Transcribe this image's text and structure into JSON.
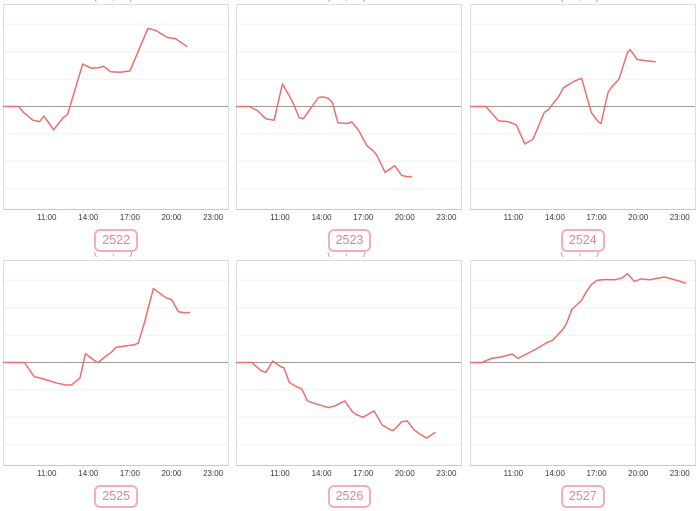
{
  "colors": {
    "line": "#ef6e6c",
    "zero_line": "#9c9c9c",
    "grid": "#f0f0f0",
    "plot_border": "#dddddd",
    "axis_line": "#c7c8d2",
    "tick_text": "#383838",
    "badge_text": "#ee7e97",
    "badge_border": "#f6acbc",
    "background": "#ffffff"
  },
  "axis": {
    "tick_hours": [
      11,
      14,
      17,
      20,
      23
    ],
    "tick_labels": [
      "11:00",
      "14:00",
      "17:00",
      "20:00",
      "23:00"
    ],
    "xlim_hours": [
      7.85,
      24.15
    ],
    "ylim_units": [
      -3.76,
      3.73
    ],
    "grid_unit_values": [
      3,
      2,
      1,
      -1,
      -2,
      -3
    ]
  },
  "chart_data": [
    {
      "type": "line",
      "badge": "2522",
      "clipped_title": "( , )",
      "x_ticks": [
        "11:00",
        "14:00",
        "17:00",
        "20:00",
        "23:00"
      ],
      "series": [
        [
          7.9,
          0
        ],
        [
          9.0,
          0
        ],
        [
          9.3,
          -0.2
        ],
        [
          10.0,
          -0.5
        ],
        [
          10.5,
          -0.55
        ],
        [
          10.8,
          -0.35
        ],
        [
          11.5,
          -0.85
        ],
        [
          12.2,
          -0.4
        ],
        [
          12.5,
          -0.3
        ],
        [
          13.6,
          1.55
        ],
        [
          14.2,
          1.4
        ],
        [
          14.8,
          1.42
        ],
        [
          15.1,
          1.47
        ],
        [
          15.6,
          1.27
        ],
        [
          16.3,
          1.25
        ],
        [
          17.0,
          1.3
        ],
        [
          18.3,
          2.85
        ],
        [
          18.9,
          2.77
        ],
        [
          19.7,
          2.52
        ],
        [
          20.3,
          2.47
        ],
        [
          21.1,
          2.2
        ]
      ]
    },
    {
      "type": "line",
      "badge": "2523",
      "clipped_title": "( , )",
      "x_ticks": [
        "11:00",
        "14:00",
        "17:00",
        "20:00",
        "23:00"
      ],
      "series": [
        [
          7.9,
          0
        ],
        [
          8.8,
          0
        ],
        [
          9.4,
          -0.15
        ],
        [
          10.0,
          -0.45
        ],
        [
          10.6,
          -0.5
        ],
        [
          11.2,
          0.82
        ],
        [
          11.9,
          0.2
        ],
        [
          12.4,
          -0.4
        ],
        [
          12.7,
          -0.45
        ],
        [
          13.2,
          -0.1
        ],
        [
          13.8,
          0.33
        ],
        [
          14.1,
          0.35
        ],
        [
          14.5,
          0.3
        ],
        [
          14.8,
          0.15
        ],
        [
          15.2,
          -0.6
        ],
        [
          15.9,
          -0.62
        ],
        [
          16.2,
          -0.56
        ],
        [
          16.7,
          -0.88
        ],
        [
          17.3,
          -1.43
        ],
        [
          17.7,
          -1.6
        ],
        [
          18.0,
          -1.77
        ],
        [
          18.6,
          -2.4
        ],
        [
          19.3,
          -2.16
        ],
        [
          19.8,
          -2.52
        ],
        [
          20.2,
          -2.56
        ],
        [
          20.5,
          -2.56
        ]
      ]
    },
    {
      "type": "line",
      "badge": "2524",
      "clipped_title": "( , )",
      "x_ticks": [
        "11:00",
        "14:00",
        "17:00",
        "20:00",
        "23:00"
      ],
      "series": [
        [
          7.9,
          0
        ],
        [
          9.0,
          0
        ],
        [
          9.9,
          -0.52
        ],
        [
          10.6,
          -0.55
        ],
        [
          11.2,
          -0.68
        ],
        [
          11.8,
          -1.37
        ],
        [
          12.4,
          -1.19
        ],
        [
          13.2,
          -0.22
        ],
        [
          13.5,
          -0.12
        ],
        [
          13.9,
          0.15
        ],
        [
          14.2,
          0.33
        ],
        [
          14.6,
          0.69
        ],
        [
          15.0,
          0.81
        ],
        [
          15.4,
          0.93
        ],
        [
          15.9,
          1.03
        ],
        [
          16.6,
          -0.22
        ],
        [
          17.1,
          -0.56
        ],
        [
          17.3,
          -0.62
        ],
        [
          17.8,
          0.51
        ],
        [
          18.1,
          0.73
        ],
        [
          18.6,
          1.0
        ],
        [
          19.2,
          1.96
        ],
        [
          19.4,
          2.08
        ],
        [
          19.9,
          1.72
        ],
        [
          20.4,
          1.68
        ],
        [
          21.2,
          1.63
        ]
      ]
    },
    {
      "type": "line",
      "badge": "2525",
      "clipped_title": "( , )",
      "x_ticks": [
        "11:00",
        "14:00",
        "17:00",
        "20:00",
        "23:00"
      ],
      "series": [
        [
          7.9,
          0
        ],
        [
          9.4,
          0
        ],
        [
          10.1,
          -0.52
        ],
        [
          10.4,
          -0.55
        ],
        [
          11.0,
          -0.64
        ],
        [
          11.8,
          -0.76
        ],
        [
          12.4,
          -0.82
        ],
        [
          12.8,
          -0.82
        ],
        [
          13.4,
          -0.56
        ],
        [
          13.8,
          0.32
        ],
        [
          14.5,
          0.05
        ],
        [
          14.7,
          0.0
        ],
        [
          15.2,
          0.2
        ],
        [
          15.7,
          0.39
        ],
        [
          16.0,
          0.55
        ],
        [
          16.6,
          0.6
        ],
        [
          17.3,
          0.65
        ],
        [
          17.6,
          0.7
        ],
        [
          18.0,
          1.36
        ],
        [
          18.7,
          2.7
        ],
        [
          19.6,
          2.36
        ],
        [
          20.0,
          2.3
        ],
        [
          20.5,
          1.85
        ],
        [
          20.9,
          1.82
        ],
        [
          21.3,
          1.82
        ]
      ]
    },
    {
      "type": "line",
      "badge": "2526",
      "clipped_title": "( , )",
      "x_ticks": [
        "11:00",
        "14:00",
        "17:00",
        "20:00",
        "23:00"
      ],
      "series": [
        [
          7.9,
          0
        ],
        [
          9.0,
          0
        ],
        [
          9.6,
          -0.28
        ],
        [
          10.0,
          -0.36
        ],
        [
          10.5,
          0.05
        ],
        [
          11.1,
          -0.16
        ],
        [
          11.3,
          -0.19
        ],
        [
          11.7,
          -0.73
        ],
        [
          12.2,
          -0.88
        ],
        [
          12.6,
          -0.97
        ],
        [
          13.0,
          -1.4
        ],
        [
          13.5,
          -1.49
        ],
        [
          14.1,
          -1.58
        ],
        [
          14.5,
          -1.65
        ],
        [
          15.0,
          -1.58
        ],
        [
          15.7,
          -1.4
        ],
        [
          16.2,
          -1.77
        ],
        [
          16.5,
          -1.89
        ],
        [
          17.0,
          -2.0
        ],
        [
          17.8,
          -1.77
        ],
        [
          18.4,
          -2.28
        ],
        [
          19.0,
          -2.46
        ],
        [
          19.2,
          -2.48
        ],
        [
          19.8,
          -2.16
        ],
        [
          20.2,
          -2.13
        ],
        [
          20.7,
          -2.46
        ],
        [
          21.2,
          -2.64
        ],
        [
          21.6,
          -2.76
        ],
        [
          22.2,
          -2.56
        ]
      ]
    },
    {
      "type": "line",
      "badge": "2527",
      "clipped_title": "( , )",
      "x_ticks": [
        "11:00",
        "14:00",
        "17:00",
        "20:00",
        "23:00"
      ],
      "series": [
        [
          7.9,
          0
        ],
        [
          8.7,
          0
        ],
        [
          9.4,
          0.15
        ],
        [
          10.1,
          0.2
        ],
        [
          10.9,
          0.31
        ],
        [
          11.3,
          0.15
        ],
        [
          12.0,
          0.33
        ],
        [
          12.7,
          0.51
        ],
        [
          13.4,
          0.73
        ],
        [
          13.8,
          0.81
        ],
        [
          14.5,
          1.18
        ],
        [
          14.8,
          1.42
        ],
        [
          15.2,
          1.94
        ],
        [
          15.5,
          2.08
        ],
        [
          15.9,
          2.27
        ],
        [
          16.2,
          2.55
        ],
        [
          16.6,
          2.84
        ],
        [
          17.0,
          3.0
        ],
        [
          17.6,
          3.03
        ],
        [
          18.3,
          3.02
        ],
        [
          18.8,
          3.08
        ],
        [
          19.2,
          3.24
        ],
        [
          19.7,
          2.96
        ],
        [
          20.2,
          3.05
        ],
        [
          20.8,
          3.02
        ],
        [
          21.4,
          3.08
        ],
        [
          21.9,
          3.12
        ],
        [
          22.4,
          3.05
        ],
        [
          23.4,
          2.9
        ]
      ]
    }
  ]
}
